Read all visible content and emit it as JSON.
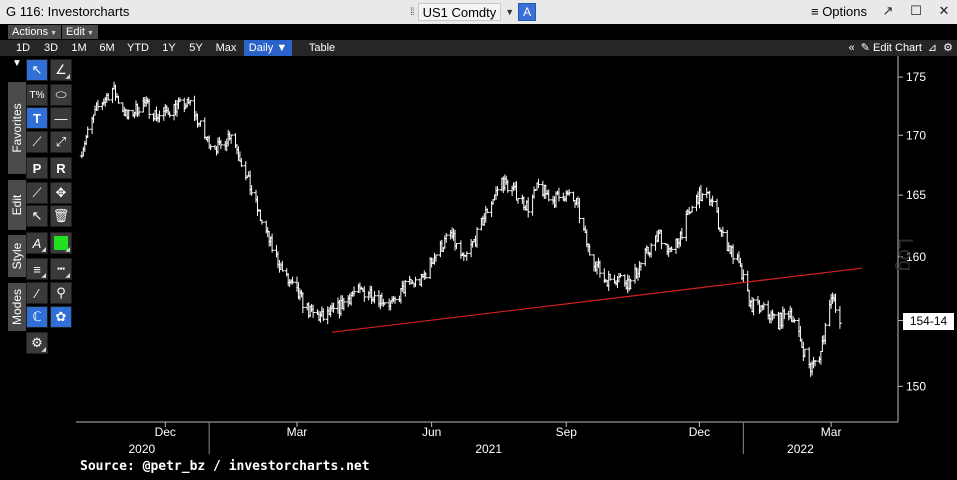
{
  "window": {
    "title": "G 116: Investorcharts",
    "security": "US1 Comdty",
    "security_badge": "A",
    "options_label": "Options",
    "icons": [
      "drag-handle-icon",
      "dropdown-caret-icon",
      "hamburger-icon",
      "popout-icon",
      "maximize-icon",
      "close-icon"
    ]
  },
  "menus": {
    "actions": "Actions",
    "edit": "Edit"
  },
  "periods": [
    "1D",
    "3D",
    "1M",
    "6M",
    "YTD",
    "1Y",
    "5Y",
    "Max"
  ],
  "frequency": "Daily",
  "table_label": "Table",
  "edit_chart_label": "Edit Chart",
  "side_tabs": [
    "Favorites",
    "Edit",
    "Style",
    "Modes"
  ],
  "tools": [
    "pointer-icon",
    "pencil-icon",
    "text-percent-icon",
    "ellipse-icon",
    "text-tool-icon",
    "horizontal-line-icon",
    "trendline-icon",
    "ray-icon",
    "price-label-icon",
    "range-label-icon",
    "brush-icon",
    "crosshair-move-icon",
    "select-arrow-icon",
    "trash-icon",
    "font-style-icon",
    "color-swatch-icon",
    "line-weight-icon",
    "line-dash-icon",
    "eraser-icon",
    "annotate-icon",
    "magnet-icon",
    "palette-icon",
    "gear-icon"
  ],
  "colors": {
    "trendline": "#d42020",
    "swatch": "#22e022",
    "accent": "#2a62c9"
  },
  "price_label": "154-14",
  "scale_label": "Log",
  "source_text": "Source: @petr_bz / investorcharts.net",
  "chart_data": {
    "type": "ohlc-bar",
    "title": "",
    "y_scale": "log",
    "y_ticks": [
      150,
      155,
      160,
      165,
      170,
      175
    ],
    "y_range": [
      147.5,
      176.5
    ],
    "x_start": "2020-10-01",
    "x_end": "2022-04-15",
    "month_ticks": [
      {
        "label": "Dec",
        "date": "2020-12-01"
      },
      {
        "label": "Mar",
        "date": "2021-03-01"
      },
      {
        "label": "Jun",
        "date": "2021-06-01"
      },
      {
        "label": "Sep",
        "date": "2021-09-01"
      },
      {
        "label": "Dec",
        "date": "2021-12-01"
      },
      {
        "label": "Mar",
        "date": "2022-03-01"
      }
    ],
    "year_labels": [
      {
        "label": "2020",
        "date": "2020-11-15"
      },
      {
        "label": "2021",
        "date": "2021-07-10"
      },
      {
        "label": "2022",
        "date": "2022-02-08"
      }
    ],
    "year_separators": [
      "2020-12-31",
      "2021-12-31"
    ],
    "price_path": [
      [
        "2020-10-05",
        168.8
      ],
      [
        "2020-10-15",
        172.2
      ],
      [
        "2020-10-26",
        174.0
      ],
      [
        "2020-11-05",
        171.5
      ],
      [
        "2020-11-16",
        172.8
      ],
      [
        "2020-11-26",
        171.6
      ],
      [
        "2020-12-07",
        172.4
      ],
      [
        "2020-12-18",
        172.7
      ],
      [
        "2020-12-29",
        169.6
      ],
      [
        "2021-01-07",
        168.9
      ],
      [
        "2021-01-15",
        170.3
      ],
      [
        "2021-01-25",
        166.8
      ],
      [
        "2021-02-03",
        163.4
      ],
      [
        "2021-02-12",
        160.7
      ],
      [
        "2021-02-22",
        158.2
      ],
      [
        "2021-03-01",
        157.1
      ],
      [
        "2021-03-10",
        155.6
      ],
      [
        "2021-03-19",
        155.2
      ],
      [
        "2021-03-29",
        155.9
      ],
      [
        "2021-04-08",
        157.1
      ],
      [
        "2021-04-19",
        157.3
      ],
      [
        "2021-04-28",
        156.7
      ],
      [
        "2021-05-06",
        156.2
      ],
      [
        "2021-05-14",
        157.7
      ],
      [
        "2021-05-25",
        158.1
      ],
      [
        "2021-06-03",
        160.1
      ],
      [
        "2021-06-14",
        161.8
      ],
      [
        "2021-06-23",
        159.6
      ],
      [
        "2021-07-02",
        161.7
      ],
      [
        "2021-07-09",
        163.8
      ],
      [
        "2021-07-19",
        166.2
      ],
      [
        "2021-07-29",
        165.1
      ],
      [
        "2021-08-06",
        164.0
      ],
      [
        "2021-08-13",
        165.7
      ],
      [
        "2021-08-23",
        164.6
      ],
      [
        "2021-08-31",
        165.1
      ],
      [
        "2021-09-08",
        164.3
      ],
      [
        "2021-09-16",
        160.6
      ],
      [
        "2021-09-27",
        158.2
      ],
      [
        "2021-10-06",
        158.4
      ],
      [
        "2021-10-15",
        157.9
      ],
      [
        "2021-10-25",
        160.1
      ],
      [
        "2021-11-04",
        161.8
      ],
      [
        "2021-11-12",
        160.2
      ],
      [
        "2021-11-22",
        162.9
      ],
      [
        "2021-11-30",
        164.9
      ],
      [
        "2021-12-09",
        164.8
      ],
      [
        "2021-12-17",
        161.6
      ],
      [
        "2021-12-27",
        159.6
      ],
      [
        "2022-01-05",
        156.2
      ],
      [
        "2022-01-14",
        155.8
      ],
      [
        "2022-01-24",
        154.9
      ],
      [
        "2022-02-01",
        155.8
      ],
      [
        "2022-02-08",
        153.4
      ],
      [
        "2022-02-15",
        151.3
      ],
      [
        "2022-02-22",
        152.6
      ],
      [
        "2022-03-01",
        157.2
      ],
      [
        "2022-03-07",
        154.4
      ]
    ],
    "trendline": {
      "start": [
        "2021-03-25",
        154.1
      ],
      "end": [
        "2022-03-22",
        159.1
      ]
    }
  }
}
